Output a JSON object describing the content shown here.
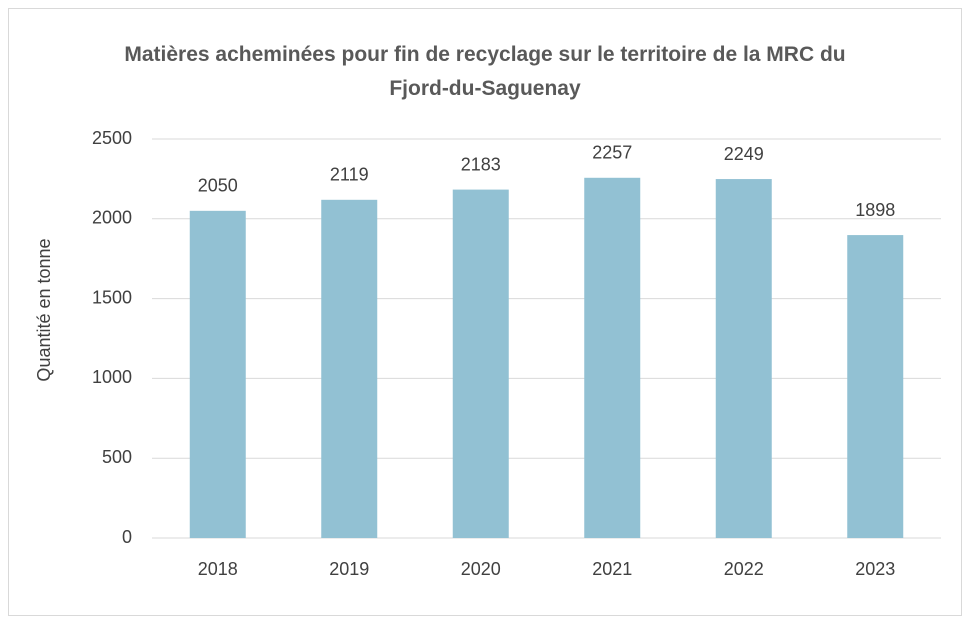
{
  "chart_data": {
    "type": "bar",
    "title": "Matières acheminées pour fin de recyclage sur le territoire de la MRC du Fjord-du-Saguenay",
    "y_label": "Quantité en tonne",
    "categories": [
      "2018",
      "2019",
      "2020",
      "2021",
      "2022",
      "2023"
    ],
    "values": [
      2050,
      2119,
      2183,
      2257,
      2249,
      1898
    ],
    "color": "#92c1d3",
    "ylim": [
      0,
      2500
    ],
    "yticks": [
      0,
      500,
      1000,
      1500,
      2000,
      2500
    ],
    "grid": true
  }
}
